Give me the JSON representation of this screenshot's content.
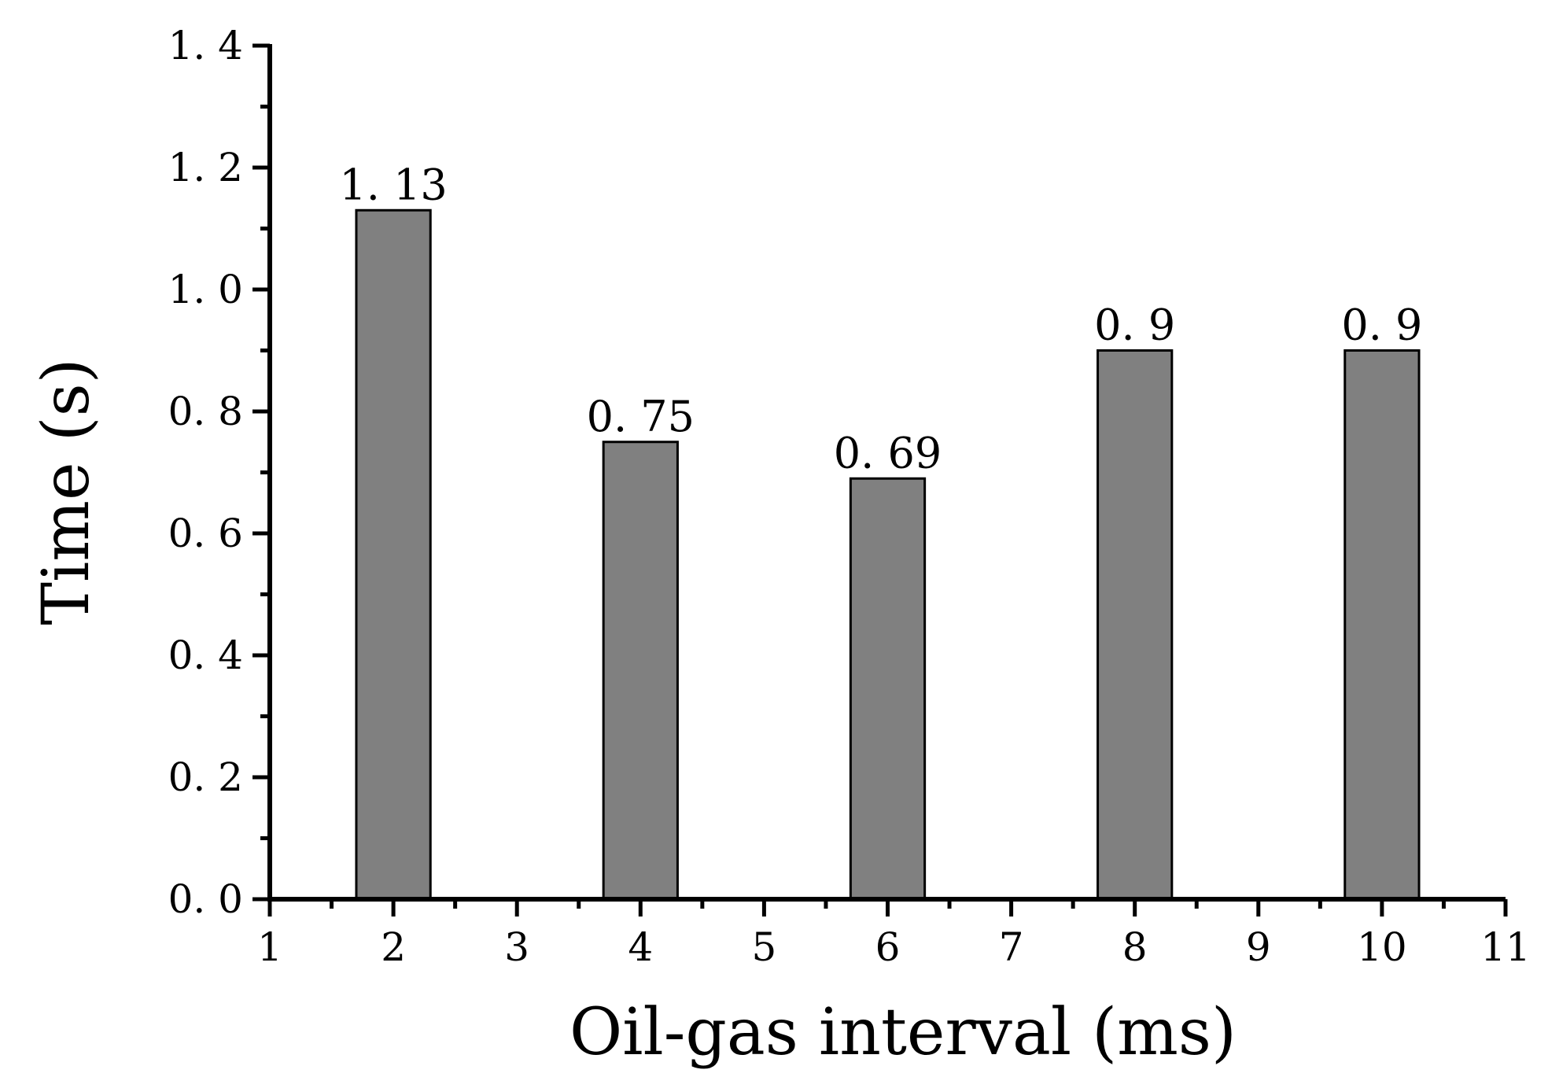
{
  "chart_data": {
    "type": "bar",
    "x": [
      2,
      4,
      6,
      8,
      10
    ],
    "values": [
      1.13,
      0.75,
      0.69,
      0.9,
      0.9
    ],
    "data_labels": [
      "1. 13",
      "0. 75",
      "0. 69",
      "0. 9",
      "0. 9"
    ],
    "title": "",
    "xlabel": "Oil-gas interval (ms)",
    "ylabel": "Time (s)",
    "xlim": [
      1,
      11
    ],
    "ylim": [
      0,
      1.4
    ],
    "x_ticks": [
      1,
      2,
      3,
      4,
      5,
      6,
      7,
      8,
      9,
      10,
      11
    ],
    "x_tick_labels": [
      "1",
      "2",
      "3",
      "4",
      "5",
      "6",
      "7",
      "8",
      "9",
      "10",
      "11"
    ],
    "y_ticks": [
      0,
      0.2,
      0.4,
      0.6,
      0.8,
      1.0,
      1.2,
      1.4
    ],
    "y_tick_labels": [
      "0. 0",
      "0. 2",
      "0. 4",
      "0. 6",
      "0. 8",
      "1. 0",
      "1. 2",
      "1. 4"
    ],
    "bar_width_data": 0.6,
    "grid": false,
    "legend": "none",
    "colors": {
      "bar_fill": "#808080",
      "bar_stroke": "#000000",
      "axis": "#000000"
    }
  }
}
